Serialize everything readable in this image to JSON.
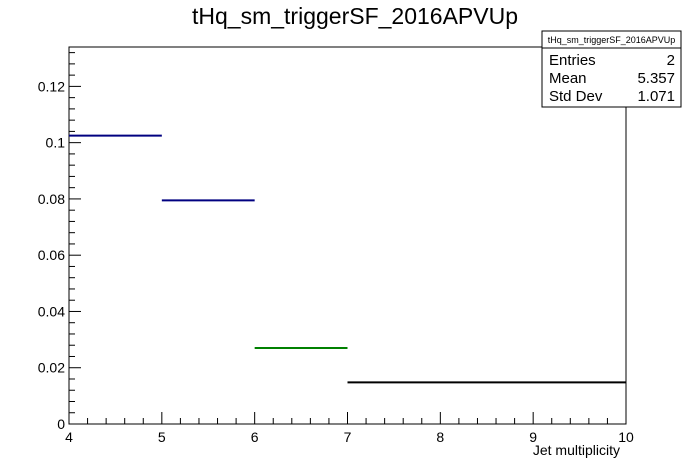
{
  "chart_data": {
    "type": "histogram",
    "title": "tHq_sm_triggerSF_2016APVUp",
    "xlabel": "Jet multiplicity",
    "ylabel": "",
    "xlim": [
      4,
      10
    ],
    "ylim": [
      0,
      0.134
    ],
    "x_ticks": [
      4,
      5,
      6,
      7,
      8,
      9,
      10
    ],
    "x_tick_labels": [
      "4",
      "5",
      "6",
      "7",
      "8",
      "9",
      "10"
    ],
    "y_ticks": [
      0,
      0.02,
      0.04,
      0.06,
      0.08,
      0.1,
      0.12
    ],
    "y_tick_labels": [
      "0",
      "0.02",
      "0.04",
      "0.06",
      "0.08",
      "0.1",
      "0.12"
    ],
    "bins": [
      {
        "x_low": 4,
        "x_high": 5,
        "value": 0.1025,
        "color": "#000080"
      },
      {
        "x_low": 5,
        "x_high": 6,
        "value": 0.0795,
        "color": "#000080"
      },
      {
        "x_low": 6,
        "x_high": 7,
        "value": 0.027,
        "color": "#008000"
      },
      {
        "x_low": 7,
        "x_high": 10,
        "value": 0.0148,
        "color": "#000000"
      }
    ],
    "grid": false,
    "stats_box": {
      "name": "tHq_sm_triggerSF_2016APVUp",
      "rows": [
        {
          "label": "Entries",
          "value": "2"
        },
        {
          "label": "Mean",
          "value": "5.357"
        },
        {
          "label": "Std Dev",
          "value": "1.071"
        }
      ],
      "placement": "top-right"
    }
  }
}
